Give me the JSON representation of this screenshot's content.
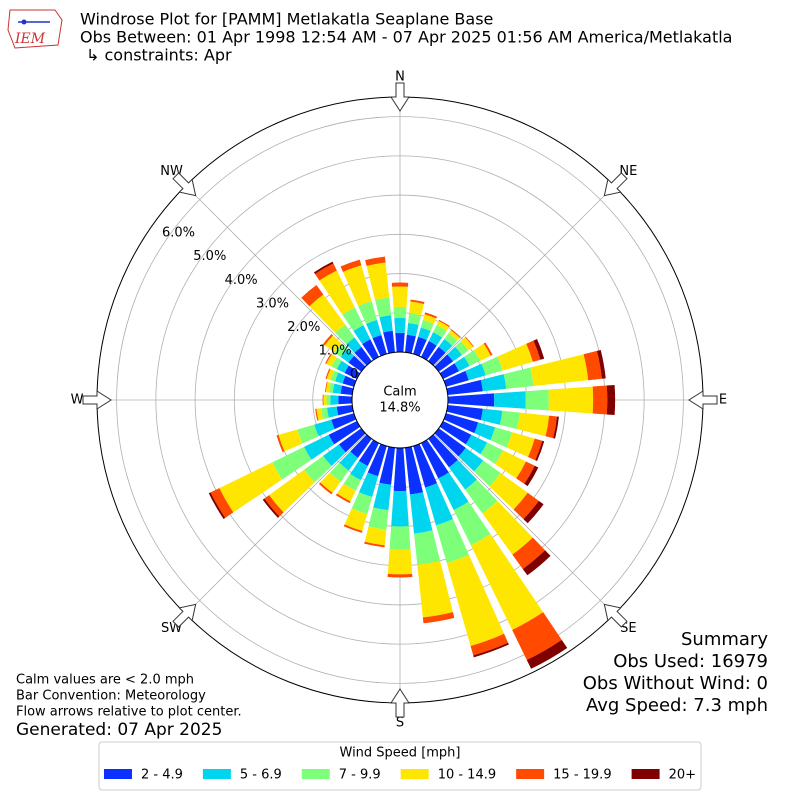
{
  "chart_data": {
    "type": "windrose",
    "title": "Windrose Plot for [PAMM] Metlakatla Seaplane Base",
    "subtitle": "Obs Between: 01 Apr 1998 12:54 AM - 07 Apr 2025 01:56 AM America/Metlakatla",
    "constraints": "↳ constraints: Apr",
    "logo_text": "IEM",
    "x": [
      0,
      10,
      20,
      30,
      40,
      50,
      60,
      70,
      80,
      90,
      100,
      110,
      120,
      130,
      140,
      150,
      160,
      170,
      180,
      190,
      200,
      210,
      220,
      230,
      240,
      250,
      260,
      270,
      280,
      290,
      300,
      310,
      320,
      330,
      340,
      350
    ],
    "xticks": [
      {
        "value": 0,
        "label": "N"
      },
      {
        "value": 45,
        "label": "NE"
      },
      {
        "value": 90,
        "label": "E"
      },
      {
        "value": 135,
        "label": "SE"
      },
      {
        "value": 180,
        "label": "S"
      },
      {
        "value": 225,
        "label": "SW"
      },
      {
        "value": 270,
        "label": "W"
      },
      {
        "value": 315,
        "label": "NW"
      }
    ],
    "ylim": [
      0,
      6.5
    ],
    "yticks": [
      {
        "value": 0,
        "label": "0.0%"
      },
      {
        "value": 1,
        "label": "1.0%"
      },
      {
        "value": 2,
        "label": "2.0%"
      },
      {
        "value": 3,
        "label": "3.0%"
      },
      {
        "value": 4,
        "label": "4.0%"
      },
      {
        "value": 5,
        "label": "5.0%"
      },
      {
        "value": 6,
        "label": "6.0%"
      }
    ],
    "grid": true,
    "calm_label": "Calm",
    "calm_value": 14.8,
    "calm_value_label": "14.8%",
    "legend_title": "Wind Speed [mph]",
    "series": [
      {
        "name": "2 - 4.9",
        "color": "#0a31ff",
        "values": [
          0.49,
          0.45,
          0.45,
          0.45,
          0.45,
          0.45,
          0.45,
          0.6,
          0.9,
          1.18,
          0.9,
          0.85,
          0.8,
          0.85,
          0.9,
          1.0,
          1.1,
          1.2,
          1.1,
          0.95,
          0.8,
          0.65,
          0.6,
          0.7,
          0.8,
          0.6,
          0.4,
          0.35,
          0.3,
          0.3,
          0.35,
          0.4,
          0.45,
          0.5,
          0.5,
          0.55
        ]
      },
      {
        "name": "5 - 6.9",
        "color": "#00d5ef",
        "values": [
          0.38,
          0.3,
          0.25,
          0.25,
          0.25,
          0.28,
          0.3,
          0.45,
          0.6,
          0.8,
          0.5,
          0.45,
          0.45,
          0.55,
          0.7,
          0.9,
          1.0,
          1.0,
          0.9,
          0.65,
          0.55,
          0.4,
          0.4,
          0.5,
          0.7,
          0.45,
          0.25,
          0.2,
          0.2,
          0.2,
          0.22,
          0.25,
          0.3,
          0.4,
          0.4,
          0.4
        ]
      },
      {
        "name": "7 - 9.9",
        "color": "#7dff7a",
        "values": [
          0.28,
          0.25,
          0.2,
          0.2,
          0.18,
          0.2,
          0.3,
          0.45,
          0.7,
          0.59,
          0.45,
          0.45,
          0.45,
          0.55,
          0.75,
          1.0,
          1.0,
          0.8,
          0.6,
          0.5,
          0.45,
          0.3,
          0.35,
          0.6,
          0.9,
          0.45,
          0.15,
          0.1,
          0.1,
          0.12,
          0.15,
          0.2,
          0.4,
          0.5,
          0.5,
          0.45
        ]
      },
      {
        "name": "10 - 14.9",
        "color": "#ffe600",
        "values": [
          0.52,
          0.3,
          0.15,
          0.12,
          0.1,
          0.15,
          0.3,
          0.8,
          1.4,
          1.13,
          0.75,
          0.6,
          0.65,
          0.85,
          1.3,
          2.4,
          2.2,
          1.35,
          0.62,
          0.4,
          0.45,
          0.3,
          0.35,
          1.1,
          1.5,
          0.5,
          0.12,
          0.08,
          0.08,
          0.1,
          0.15,
          0.3,
          0.95,
          1.05,
          0.95,
          0.9
        ]
      },
      {
        "name": "15 - 19.9",
        "color": "#ff4a00",
        "values": [
          0.1,
          0.05,
          0.05,
          0.03,
          0.02,
          0.02,
          0.05,
          0.2,
          0.35,
          0.36,
          0.2,
          0.2,
          0.25,
          0.35,
          0.45,
          0.85,
          0.25,
          0.15,
          0.08,
          0.05,
          0.05,
          0.05,
          0.05,
          0.15,
          0.25,
          0.05,
          0.03,
          0.02,
          0.02,
          0.03,
          0.03,
          0.05,
          0.3,
          0.2,
          0.15,
          0.15
        ]
      },
      {
        "name": "20+",
        "color": "#800000",
        "values": [
          0,
          0,
          0,
          0,
          0,
          0,
          0,
          0.1,
          0.1,
          0.2,
          0.05,
          0.05,
          0.1,
          0.15,
          0.2,
          0.25,
          0.05,
          0,
          0,
          0,
          0,
          0,
          0,
          0.05,
          0.05,
          0,
          0,
          0,
          0,
          0,
          0,
          0,
          0,
          0.05,
          0,
          0
        ]
      }
    ],
    "summary": [
      "Summary",
      "Obs Used: 16979",
      "Obs Without Wind: 0",
      "Avg Speed: 7.3 mph"
    ],
    "notes": [
      "Calm values are < 2.0 mph",
      "Bar Convention: Meteorology",
      "Flow arrows relative to plot center."
    ],
    "generated": "Generated: 07 Apr 2025"
  }
}
